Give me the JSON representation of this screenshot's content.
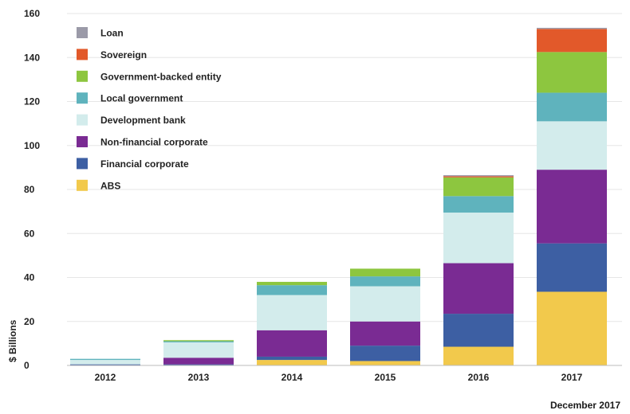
{
  "chart_data": {
    "type": "bar",
    "stacked": true,
    "ylabel": "$ Billions",
    "ylim": [
      0,
      160
    ],
    "yticks": [
      "0",
      "20",
      "40",
      "60",
      "80",
      "100",
      "120",
      "140",
      "160"
    ],
    "categories": [
      "2012",
      "2013",
      "2014",
      "2015",
      "2016",
      "2017"
    ],
    "grid": true,
    "legend_position": "top-left",
    "series": [
      {
        "name": "ABS",
        "color": "#f2c94c",
        "values": [
          0,
          0,
          2.5,
          2,
          8.5,
          33.5
        ]
      },
      {
        "name": "Financial corporate",
        "color": "#3d5fa3",
        "values": [
          0.5,
          0.5,
          1.5,
          7,
          15,
          22
        ]
      },
      {
        "name": "Non-financial corporate",
        "color": "#7a2b93",
        "values": [
          0,
          3,
          12,
          11,
          23,
          33.5
        ]
      },
      {
        "name": "Development bank",
        "color": "#d3ecec",
        "values": [
          2,
          7,
          16,
          16,
          23,
          22
        ]
      },
      {
        "name": "Local government",
        "color": "#5fb3bd",
        "values": [
          0.5,
          0.5,
          4.5,
          4.5,
          7.5,
          13
        ]
      },
      {
        "name": "Government-backed entity",
        "color": "#8dc63f",
        "values": [
          0,
          0.5,
          1.5,
          3.5,
          8.5,
          18.5
        ]
      },
      {
        "name": "Sovereign",
        "color": "#e2592a",
        "values": [
          0,
          0,
          0,
          0,
          0.5,
          10.5
        ]
      },
      {
        "name": "Loan",
        "color": "#9b9aa8",
        "values": [
          0,
          0,
          0,
          0,
          0.5,
          0.5
        ]
      }
    ],
    "legend_order": [
      "Loan",
      "Sovereign",
      "Government-backed entity",
      "Local government",
      "Development bank",
      "Non-financial corporate",
      "Financial corporate",
      "ABS"
    ]
  },
  "note": "December 2017"
}
